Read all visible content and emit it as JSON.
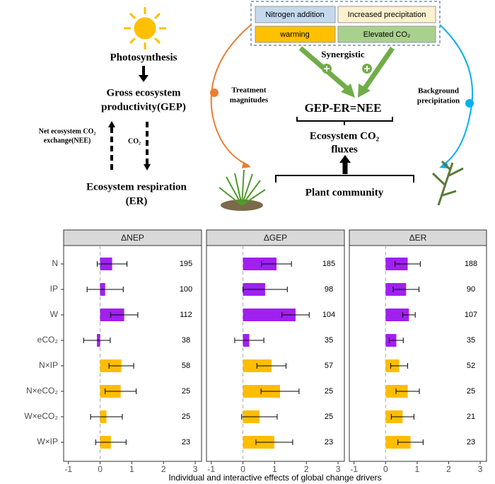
{
  "diagram": {
    "photosynthesis": "Photosynthesis",
    "gep": [
      "Gross ecosystem",
      "productivity(GEP)"
    ],
    "nee": [
      "Net ecosystem CO₂",
      "exchange(NEE)"
    ],
    "co2": "CO₂",
    "er": [
      "Ecosystem respiration",
      "(ER)"
    ],
    "treatments": [
      "Nitrogen addition",
      "Increased precipitation",
      "warming",
      "Elevated CO₂"
    ],
    "synergistic": "Synergistic",
    "treatment_magnitudes": [
      "Treatment",
      "magnitudes"
    ],
    "background_precipitation": [
      "Background",
      "precipitation"
    ],
    "equation": "GEP-ER=NEE",
    "fluxes": [
      "Ecosystem CO₂",
      "fluxes"
    ],
    "plant_community": "Plant community"
  },
  "figure_xlabel": "Individual and interactive effects of global change drivers",
  "chart_data": [
    {
      "type": "bar",
      "title": "ΔNEP",
      "categories": [
        "N",
        "IP",
        "W",
        "eCO₂",
        "N×IP",
        "N×eCO₂",
        "W×eCO₂",
        "W×IP"
      ],
      "values": [
        0.38,
        0.16,
        0.76,
        -0.1,
        0.67,
        0.65,
        0.2,
        0.34
      ],
      "errors": [
        0.47,
        0.57,
        0.43,
        0.42,
        0.39,
        0.49,
        0.5,
        0.48
      ],
      "sample_sizes": [
        195,
        100,
        112,
        38,
        58,
        25,
        25,
        23
      ],
      "colors": [
        "#a020f0",
        "#a020f0",
        "#a020f0",
        "#a020f0",
        "#ffbd00",
        "#ffbd00",
        "#ffbd00",
        "#ffbd00"
      ],
      "xlim": [
        -1.15,
        3.2
      ],
      "xticks": [
        -1,
        0,
        1,
        2,
        3
      ]
    },
    {
      "type": "bar",
      "title": "ΔGEP",
      "values": [
        1.06,
        0.7,
        1.66,
        0.2,
        0.9,
        1.17,
        0.52,
        0.99
      ],
      "errors": [
        0.47,
        0.7,
        0.43,
        0.46,
        0.46,
        0.6,
        0.56,
        0.58
      ],
      "sample_sizes": [
        185,
        98,
        104,
        35,
        57,
        25,
        25,
        23
      ],
      "colors": [
        "#a020f0",
        "#a020f0",
        "#a020f0",
        "#a020f0",
        "#ffbd00",
        "#ffbd00",
        "#ffbd00",
        "#ffbd00"
      ],
      "xlim": [
        -1.15,
        3.2
      ],
      "xticks": [
        -1,
        0,
        1,
        2,
        3
      ]
    },
    {
      "type": "bar",
      "title": "ΔER",
      "values": [
        0.7,
        0.65,
        0.74,
        0.34,
        0.43,
        0.7,
        0.54,
        0.79
      ],
      "errors": [
        0.4,
        0.41,
        0.2,
        0.22,
        0.27,
        0.37,
        0.36,
        0.4
      ],
      "sample_sizes": [
        188,
        90,
        107,
        35,
        52,
        25,
        21,
        23
      ],
      "colors": [
        "#a020f0",
        "#a020f0",
        "#a020f0",
        "#a020f0",
        "#ffbd00",
        "#ffbd00",
        "#ffbd00",
        "#ffbd00"
      ],
      "xlim": [
        -1.15,
        3.2
      ],
      "xticks": [
        -1,
        0,
        1,
        2,
        3
      ]
    }
  ]
}
